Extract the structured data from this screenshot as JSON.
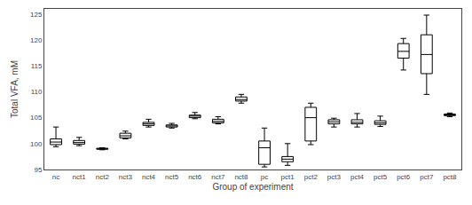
{
  "chart_data": {
    "type": "box",
    "xlabel": "Group of experiment",
    "ylabel": "Total VFA, mM",
    "categories": [
      "nc",
      "nct1",
      "nct2",
      "nct3",
      "nct4",
      "nct5",
      "nct6",
      "nct7",
      "nct8",
      "pc",
      "pct1",
      "pct2",
      "pct3",
      "pct4",
      "pct5",
      "pct6",
      "pct7",
      "pct8"
    ],
    "values": [
      {
        "whislo": 99.4,
        "q1": 99.8,
        "med": 100.3,
        "q3": 100.9,
        "whishi": 103.2
      },
      {
        "whislo": 99.6,
        "q1": 99.9,
        "med": 100.2,
        "q3": 100.6,
        "whishi": 101.2
      },
      {
        "whislo": 98.8,
        "q1": 98.9,
        "med": 99.0,
        "q3": 99.1,
        "whishi": 99.2
      },
      {
        "whislo": 100.9,
        "q1": 101.1,
        "med": 101.5,
        "q3": 102.0,
        "whishi": 102.4
      },
      {
        "whislo": 103.2,
        "q1": 103.5,
        "med": 103.8,
        "q3": 104.1,
        "whishi": 104.7
      },
      {
        "whislo": 103.0,
        "q1": 103.2,
        "med": 103.4,
        "q3": 103.6,
        "whishi": 103.9
      },
      {
        "whislo": 104.8,
        "q1": 105.0,
        "med": 105.3,
        "q3": 105.5,
        "whishi": 106.0
      },
      {
        "whislo": 103.8,
        "q1": 104.0,
        "med": 104.3,
        "q3": 104.7,
        "whishi": 105.2
      },
      {
        "whislo": 107.8,
        "q1": 108.2,
        "med": 108.5,
        "q3": 109.0,
        "whishi": 109.5
      },
      {
        "whislo": 95.5,
        "q1": 96.0,
        "med": 99.2,
        "q3": 100.5,
        "whishi": 103.0
      },
      {
        "whislo": 95.8,
        "q1": 96.5,
        "med": 97.0,
        "q3": 97.5,
        "whishi": 100.0
      },
      {
        "whislo": 99.8,
        "q1": 100.5,
        "med": 105.0,
        "q3": 107.0,
        "whishi": 107.8
      },
      {
        "whislo": 103.2,
        "q1": 103.8,
        "med": 104.2,
        "q3": 104.6,
        "whishi": 104.9
      },
      {
        "whislo": 103.2,
        "q1": 103.8,
        "med": 104.1,
        "q3": 104.6,
        "whishi": 105.8
      },
      {
        "whislo": 103.3,
        "q1": 103.7,
        "med": 104.0,
        "q3": 104.4,
        "whishi": 105.3
      },
      {
        "whislo": 114.2,
        "q1": 116.5,
        "med": 117.8,
        "q3": 119.3,
        "whishi": 120.3
      },
      {
        "whislo": 109.5,
        "q1": 113.5,
        "med": 117.2,
        "q3": 121.0,
        "whishi": 124.8
      },
      {
        "whislo": 105.2,
        "q1": 105.4,
        "med": 105.5,
        "q3": 105.7,
        "whishi": 105.9
      }
    ],
    "color": "#000000",
    "ylim": [
      95,
      126
    ],
    "yticks": [
      95,
      100,
      105,
      110,
      115,
      120,
      125
    ],
    "grid": false
  }
}
